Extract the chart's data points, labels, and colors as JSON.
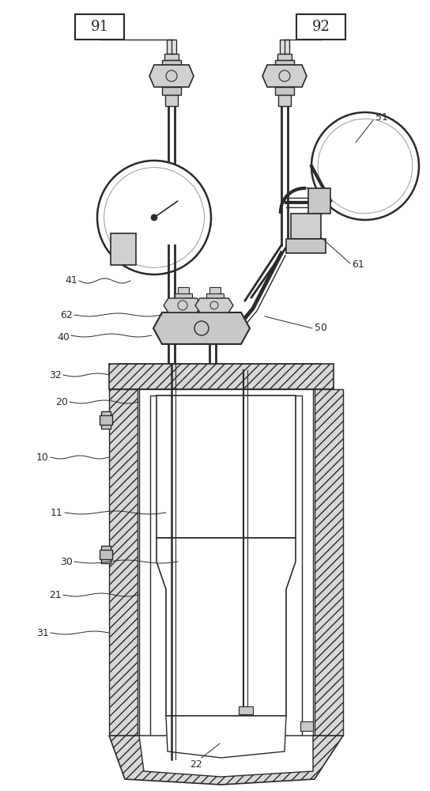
{
  "fig_width": 5.44,
  "fig_height": 10.0,
  "dpi": 100,
  "bg_color": "#ffffff",
  "lc": "#2a2a2a"
}
